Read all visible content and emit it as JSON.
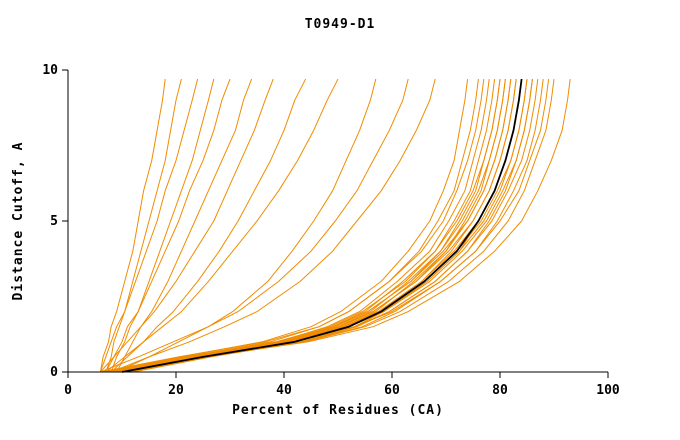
{
  "chart_data": {
    "type": "line",
    "title": "T0949-D1",
    "xlabel": "Percent of Residues (CA)",
    "ylabel": "Distance Cutoff, A",
    "xlim": [
      0,
      100
    ],
    "ylim": [
      0,
      10
    ],
    "xticks": [
      0,
      20,
      40,
      60,
      80,
      100
    ],
    "yticks": [
      0,
      5,
      10
    ],
    "grid": false,
    "legend": "none",
    "colors": {
      "model": "#f08c00",
      "reference": "#000000",
      "axis": "#000000"
    },
    "y_grid": [
      0,
      0.5,
      1,
      1.5,
      2,
      3,
      4,
      5,
      6,
      7,
      8,
      9,
      9.7
    ],
    "reference_series": {
      "name": "consensus-curve",
      "x": [
        10,
        25,
        42,
        52,
        58,
        66,
        72,
        76,
        79,
        81,
        82.5,
        83.5,
        84
      ]
    },
    "series": [
      {
        "name": "model-curve",
        "x": [
          7,
          21,
          36,
          45,
          50.5,
          58,
          63,
          67,
          69.5,
          71.5,
          72.5,
          73.5,
          74
        ]
      },
      {
        "name": "model-curve",
        "x": [
          8,
          22,
          37.5,
          46.5,
          52,
          59.5,
          65,
          68.5,
          71.5,
          73,
          74.5,
          75.5,
          76
        ]
      },
      {
        "name": "model-curve",
        "x": [
          6,
          20.5,
          36.5,
          46.5,
          52,
          59.5,
          65.5,
          69.5,
          72,
          74,
          75.5,
          76.5,
          77
        ]
      },
      {
        "name": "model-curve",
        "x": [
          9,
          23,
          39,
          48,
          54,
          61,
          67,
          70.5,
          73.5,
          75,
          76.5,
          77.5,
          78
        ]
      },
      {
        "name": "model-curve",
        "x": [
          10,
          24,
          40,
          49,
          55,
          62,
          68,
          71.5,
          74.5,
          76,
          77.5,
          78.5,
          79
        ]
      },
      {
        "name": "model-curve",
        "x": [
          7,
          22,
          38.5,
          48.5,
          54.5,
          62.5,
          68,
          72,
          75,
          77,
          78.5,
          79.5,
          80
        ]
      },
      {
        "name": "model-curve",
        "x": [
          11,
          25,
          41,
          50,
          56,
          63,
          69,
          72.5,
          75.5,
          77,
          78.5,
          79.5,
          80
        ]
      },
      {
        "name": "model-curve",
        "x": [
          8,
          23,
          39.5,
          49.5,
          55.5,
          63.5,
          69,
          73,
          76,
          78,
          79.5,
          80.5,
          81
        ]
      },
      {
        "name": "model-curve",
        "x": [
          12,
          26,
          42,
          51,
          57,
          64,
          70,
          73.5,
          76.5,
          78,
          79.5,
          80.5,
          81
        ]
      },
      {
        "name": "model-curve",
        "x": [
          6,
          21.5,
          39,
          49,
          55.5,
          63.5,
          69.5,
          74,
          77,
          79,
          80.5,
          81.5,
          82
        ]
      },
      {
        "name": "model-curve",
        "x": [
          9,
          24,
          40.5,
          50.5,
          56.5,
          64.5,
          70,
          74,
          77,
          79,
          80.5,
          81.5,
          82
        ]
      },
      {
        "name": "model-curve",
        "x": [
          7,
          22.5,
          40,
          50,
          56.5,
          64.5,
          70.5,
          75,
          78,
          80,
          81.5,
          82.5,
          83
        ]
      },
      {
        "name": "model-curve",
        "x": [
          10,
          25,
          41.5,
          51.5,
          57.5,
          65.5,
          71,
          75,
          78,
          80,
          81.5,
          82.5,
          83
        ]
      },
      {
        "name": "model-curve",
        "x": [
          8,
          23.5,
          41,
          51,
          57.5,
          65.5,
          71.5,
          76,
          79,
          81,
          82.5,
          83.5,
          84
        ]
      },
      {
        "name": "model-curve",
        "x": [
          12,
          26.5,
          43,
          53,
          58.5,
          66.5,
          72.5,
          76,
          79,
          81,
          82.5,
          83.5,
          84
        ]
      },
      {
        "name": "model-curve",
        "x": [
          6,
          22,
          40,
          51,
          57.5,
          66,
          72,
          76.5,
          79.5,
          82,
          83.5,
          84.5,
          85
        ]
      },
      {
        "name": "model-curve",
        "x": [
          9,
          24.5,
          42,
          52,
          58.5,
          66.5,
          72.5,
          77,
          80,
          82,
          83.5,
          84.5,
          85
        ]
      },
      {
        "name": "model-curve",
        "x": [
          11,
          26,
          43.5,
          53.5,
          59.5,
          68,
          74,
          78,
          81,
          83,
          84.5,
          85.5,
          86
        ]
      },
      {
        "name": "model-curve",
        "x": [
          7,
          23,
          41,
          52,
          58.5,
          67,
          73,
          77.5,
          80.5,
          83,
          84.5,
          85.5,
          86
        ]
      },
      {
        "name": "model-curve",
        "x": [
          8,
          24,
          42,
          53,
          59.5,
          68,
          74,
          78.5,
          81.5,
          84,
          85.5,
          86.5,
          87
        ]
      },
      {
        "name": "model-curve",
        "x": [
          10,
          26,
          43.5,
          54.5,
          60.5,
          69,
          75.5,
          79.5,
          82.5,
          85,
          86.5,
          87.5,
          88
        ]
      },
      {
        "name": "model-curve",
        "x": [
          6,
          23,
          42,
          53,
          60,
          69,
          75.5,
          80,
          83.5,
          85.5,
          87.5,
          88.5,
          89
        ]
      },
      {
        "name": "model-curve",
        "x": [
          9,
          25.5,
          44,
          55,
          61.5,
          70.5,
          77,
          81.5,
          84.5,
          86.5,
          88.5,
          89.5,
          90
        ]
      },
      {
        "name": "model-curve",
        "x": [
          8,
          25.5,
          44.5,
          56.5,
          63,
          72.5,
          79,
          84,
          87,
          89.5,
          91.5,
          92.5,
          93
        ]
      },
      {
        "name": "model-curve",
        "x": [
          6,
          6.5,
          7.5,
          8,
          9,
          10.5,
          12,
          13,
          14,
          15.5,
          16.5,
          17.5,
          18
        ]
      },
      {
        "name": "model-curve",
        "x": [
          7,
          8,
          8.5,
          9.5,
          10.5,
          12,
          13.5,
          15,
          16.5,
          18,
          19,
          20,
          21
        ]
      },
      {
        "name": "model-curve",
        "x": [
          6,
          7,
          8,
          9,
          10.5,
          12.5,
          14.5,
          16.5,
          18,
          20,
          21.5,
          23,
          24
        ]
      },
      {
        "name": "model-curve",
        "x": [
          8,
          9,
          10.5,
          11.5,
          13,
          15,
          17,
          19,
          21,
          23,
          24.5,
          26,
          27
        ]
      },
      {
        "name": "model-curve",
        "x": [
          7,
          8.5,
          10,
          11,
          13,
          15.5,
          18,
          20.5,
          22.5,
          25,
          27,
          28.5,
          30
        ]
      },
      {
        "name": "model-curve",
        "x": [
          9,
          10.5,
          12,
          13.5,
          15.5,
          18.5,
          21,
          23.5,
          26,
          28.5,
          31,
          32.5,
          34
        ]
      },
      {
        "name": "model-curve",
        "x": [
          6,
          8.5,
          11,
          13.5,
          16,
          20,
          23.5,
          27,
          29.5,
          32,
          34.5,
          36.5,
          38
        ]
      },
      {
        "name": "model-curve",
        "x": [
          8,
          11,
          14,
          16.5,
          19.5,
          24,
          28,
          31.5,
          34.5,
          37.5,
          40,
          42,
          44
        ]
      },
      {
        "name": "model-curve",
        "x": [
          7,
          10.5,
          14,
          17.5,
          21,
          26,
          30.5,
          35,
          39,
          42.5,
          45.5,
          48,
          50
        ]
      },
      {
        "name": "model-curve",
        "x": [
          9,
          15,
          20.5,
          26,
          30.5,
          37,
          41.5,
          45.5,
          49,
          51.5,
          54,
          56,
          57
        ]
      },
      {
        "name": "model-curve",
        "x": [
          6,
          13,
          19.5,
          26,
          31.5,
          39,
          45,
          49.5,
          53.5,
          56.5,
          59.5,
          62,
          63
        ]
      },
      {
        "name": "model-curve",
        "x": [
          8,
          15,
          22.5,
          29,
          35,
          43,
          49,
          53.5,
          58,
          61.5,
          64.5,
          67,
          68
        ]
      }
    ]
  }
}
